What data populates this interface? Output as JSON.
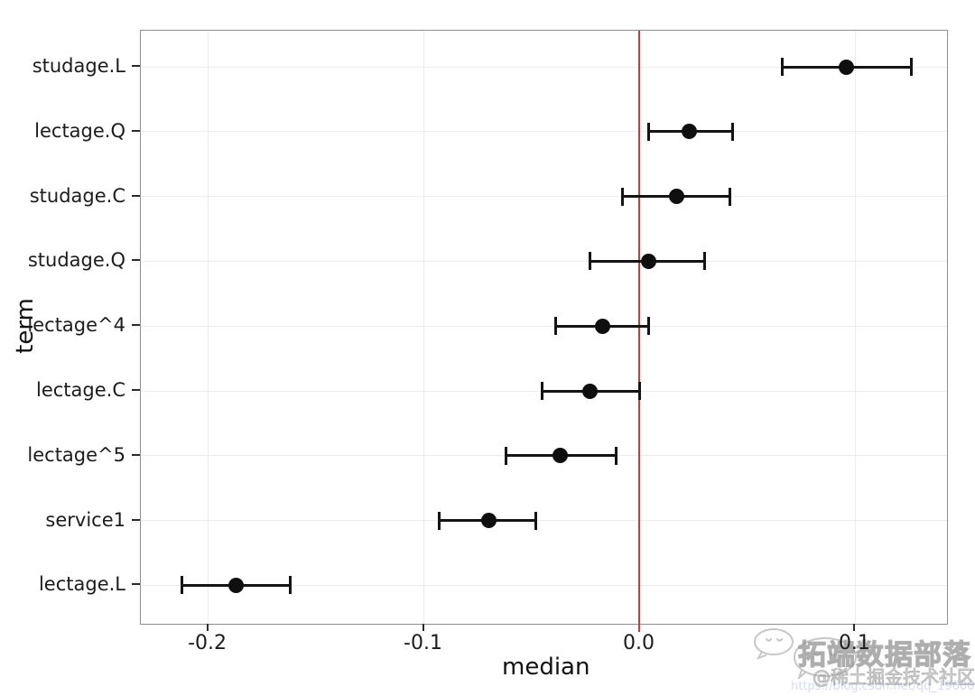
{
  "chart_data": {
    "type": "scatter",
    "subtype": "pointrange-forest",
    "title": "",
    "xlabel": "median",
    "ylabel": "term",
    "x_ticks": [
      "-0.2",
      "-0.1",
      "0.0",
      "0.1"
    ],
    "x_tick_values": [
      -0.2,
      -0.1,
      0.0,
      0.1
    ],
    "xlim": [
      -0.2312,
      0.1425
    ],
    "grid": true,
    "legend": "none",
    "reference_line": {
      "x": 0.0,
      "color": "#cb3a3a"
    },
    "point_color": "#0f0f0f",
    "series": [
      {
        "term": "studage.L",
        "median": 0.096,
        "lower": 0.066,
        "upper": 0.126
      },
      {
        "term": "lectage.Q",
        "median": 0.023,
        "lower": 0.004,
        "upper": 0.043
      },
      {
        "term": "studage.C",
        "median": 0.017,
        "lower": -0.008,
        "upper": 0.042
      },
      {
        "term": "studage.Q",
        "median": 0.004,
        "lower": -0.023,
        "upper": 0.03
      },
      {
        "term": "lectage^4",
        "median": -0.017,
        "lower": -0.039,
        "upper": 0.004
      },
      {
        "term": "lectage.C",
        "median": -0.023,
        "lower": -0.045,
        "upper": 0.0
      },
      {
        "term": "lectage^5",
        "median": -0.037,
        "lower": -0.062,
        "upper": -0.011
      },
      {
        "term": "service1",
        "median": -0.07,
        "lower": -0.093,
        "upper": -0.048
      },
      {
        "term": "lectage.L",
        "median": -0.187,
        "lower": -0.212,
        "upper": -0.162
      }
    ]
  },
  "watermark": {
    "brand": "拓端数据部落",
    "community": "@稀土掘金技术社区",
    "url": "https://blog.csdn.net/qq_19600291",
    "icon": "chat-bubbles-icon"
  }
}
